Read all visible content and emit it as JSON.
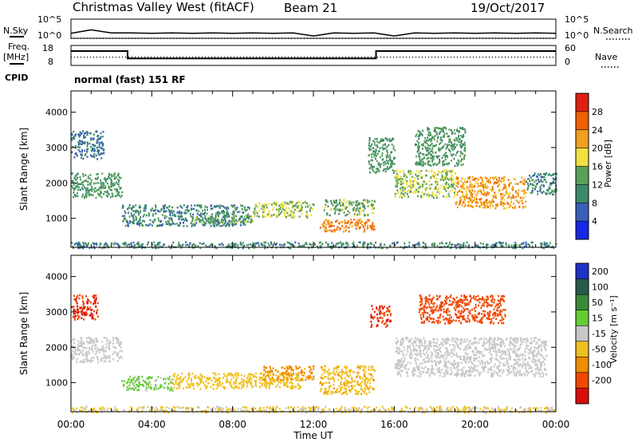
{
  "header": {
    "station": "Christmas Valley West (fitACF)",
    "beam": "Beam 21",
    "date": "19/Oct/2017"
  },
  "top_panels": {
    "nsky": {
      "label": "N.Sky",
      "ticks_left": [
        "10^5",
        "10^0"
      ],
      "right_label": "N.Search",
      "ticks_right": [
        "10^5",
        "10^0"
      ]
    },
    "freq": {
      "label_line1": "Freq.",
      "label_line2": "[MHz]",
      "ticks_left": [
        "18",
        "8"
      ],
      "right_label": "Nave",
      "ticks_right": [
        "60",
        "0"
      ]
    },
    "cpid": {
      "label": "CPID",
      "text": "normal (fast) 151 RF"
    }
  },
  "x_axis": {
    "title": "Time UT",
    "ticks": [
      "00:00",
      "04:00",
      "08:00",
      "12:00",
      "16:00",
      "20:00",
      "00:00"
    ]
  },
  "y_axis": {
    "title": "Slant Range [km]",
    "ticks": [
      "1000",
      "2000",
      "3000",
      "4000"
    ]
  },
  "colorbars": {
    "power": {
      "title": "Power [dB]",
      "ticks": [
        "4",
        "8",
        "12",
        "16",
        "20",
        "24",
        "28"
      ],
      "colors": [
        "#1428e6",
        "#3a5fb8",
        "#3d8a6a",
        "#5aa05a",
        "#f0e040",
        "#f0a020",
        "#f06000",
        "#e02010"
      ]
    },
    "velocity": {
      "title": "Velocity [m s⁻¹]",
      "ticks": [
        "200",
        "100",
        "50",
        "15",
        "-15",
        "-50",
        "-100",
        "-200"
      ],
      "colors": [
        "#1e32c8",
        "#2a5a4a",
        "#3a8a3a",
        "#66cc33",
        "#c8c8c8",
        "#f0c020",
        "#f08c00",
        "#f04800",
        "#dc0c0c"
      ]
    }
  },
  "chart_data": [
    {
      "type": "line",
      "title": "N.Sky / N.Search",
      "x": [
        0,
        1,
        2,
        3,
        4,
        5,
        6,
        7,
        8,
        9,
        10,
        11,
        12,
        13,
        14,
        15,
        16,
        17,
        18,
        19,
        20,
        21,
        22,
        23,
        24
      ],
      "series": [
        {
          "name": "N.Sky",
          "values": [
            1.3,
            2.2,
            1.4,
            1.4,
            1.3,
            1.4,
            1.3,
            1.4,
            1.3,
            1.4,
            1.3,
            1.4,
            0.6,
            1.4,
            1.3,
            1.4,
            0.6,
            1.4,
            1.3,
            1.4,
            1.3,
            1.4,
            1.3,
            1.4,
            1.3
          ]
        }
      ],
      "ylim": [
        0,
        5
      ],
      "xlim": [
        0,
        24
      ]
    },
    {
      "type": "line",
      "title": "Freq. / Nave",
      "x": [
        0.0,
        2.8,
        2.8,
        12.05,
        12.15,
        15.1,
        15.1,
        16.0,
        16.1,
        24.0
      ],
      "series": [
        {
          "name": "Freq.",
          "values": [
            15.2,
            15.2,
            11.5,
            11.5,
            11.5,
            11.5,
            15.2,
            15.2,
            15.2,
            15.2
          ]
        },
        {
          "name": "Nave",
          "values": [
            25,
            25,
            25,
            25,
            25,
            25,
            25,
            25,
            25,
            25
          ]
        }
      ],
      "ylim": [
        8,
        18
      ],
      "xlim": [
        0,
        24
      ]
    },
    {
      "type": "heatmap",
      "title": "Power [dB]",
      "xlabel": "Time UT",
      "ylabel": "Slant Range [km]",
      "xlim": [
        0,
        24
      ],
      "ylim": [
        180,
        4600
      ],
      "regions": [
        {
          "t0": 0.0,
          "t1": 1.6,
          "r0": 2700,
          "r1": 3500,
          "value": 8
        },
        {
          "t0": 0.0,
          "t1": 2.5,
          "r0": 1600,
          "r1": 2300,
          "value": 12
        },
        {
          "t0": 2.5,
          "t1": 8.8,
          "r0": 800,
          "r1": 1400,
          "value": 10
        },
        {
          "t0": 6.0,
          "t1": 9.0,
          "r0": 900,
          "r1": 1100,
          "value": 14
        },
        {
          "t0": 9.0,
          "t1": 12.0,
          "r0": 1050,
          "r1": 1500,
          "value": 16
        },
        {
          "t0": 12.3,
          "t1": 15.0,
          "r0": 650,
          "r1": 1000,
          "value": 24
        },
        {
          "t0": 12.5,
          "t1": 15.0,
          "r0": 1100,
          "r1": 1550,
          "value": 14
        },
        {
          "t0": 14.7,
          "t1": 16.0,
          "r0": 2300,
          "r1": 3300,
          "value": 12
        },
        {
          "t0": 16.0,
          "t1": 19.0,
          "r0": 1600,
          "r1": 2400,
          "value": 16
        },
        {
          "t0": 17.0,
          "t1": 19.5,
          "r0": 2500,
          "r1": 3600,
          "value": 12
        },
        {
          "t0": 19.0,
          "t1": 22.5,
          "r0": 1300,
          "r1": 2200,
          "value": 22
        },
        {
          "t0": 22.5,
          "t1": 24.0,
          "r0": 1700,
          "r1": 2300,
          "value": 10
        },
        {
          "t0": 0.0,
          "t1": 24.0,
          "r0": 180,
          "r1": 350,
          "value": 10
        }
      ]
    },
    {
      "type": "heatmap",
      "title": "Velocity [m s⁻¹]",
      "xlabel": "Time UT",
      "ylabel": "Slant Range [km]",
      "xlim": [
        0,
        24
      ],
      "ylim": [
        180,
        4600
      ],
      "regions": [
        {
          "t0": 0.0,
          "t1": 1.3,
          "r0": 2800,
          "r1": 3500,
          "value": -200
        },
        {
          "t0": 0.0,
          "t1": 2.5,
          "r0": 1600,
          "r1": 2300,
          "value": 0
        },
        {
          "t0": 2.5,
          "t1": 5.0,
          "r0": 800,
          "r1": 1200,
          "value": 25
        },
        {
          "t0": 5.0,
          "t1": 11.5,
          "r0": 850,
          "r1": 1300,
          "value": -30
        },
        {
          "t0": 9.5,
          "t1": 12.0,
          "r0": 1100,
          "r1": 1500,
          "value": -60
        },
        {
          "t0": 12.3,
          "t1": 15.0,
          "r0": 700,
          "r1": 1500,
          "value": -40
        },
        {
          "t0": 14.8,
          "t1": 15.8,
          "r0": 2600,
          "r1": 3200,
          "value": -200
        },
        {
          "t0": 16.0,
          "t1": 23.5,
          "r0": 1200,
          "r1": 2300,
          "value": 0
        },
        {
          "t0": 17.2,
          "t1": 21.5,
          "r0": 2700,
          "r1": 3500,
          "value": -150
        },
        {
          "t0": 0.0,
          "t1": 24.0,
          "r0": 180,
          "r1": 350,
          "value": -20
        }
      ]
    }
  ]
}
